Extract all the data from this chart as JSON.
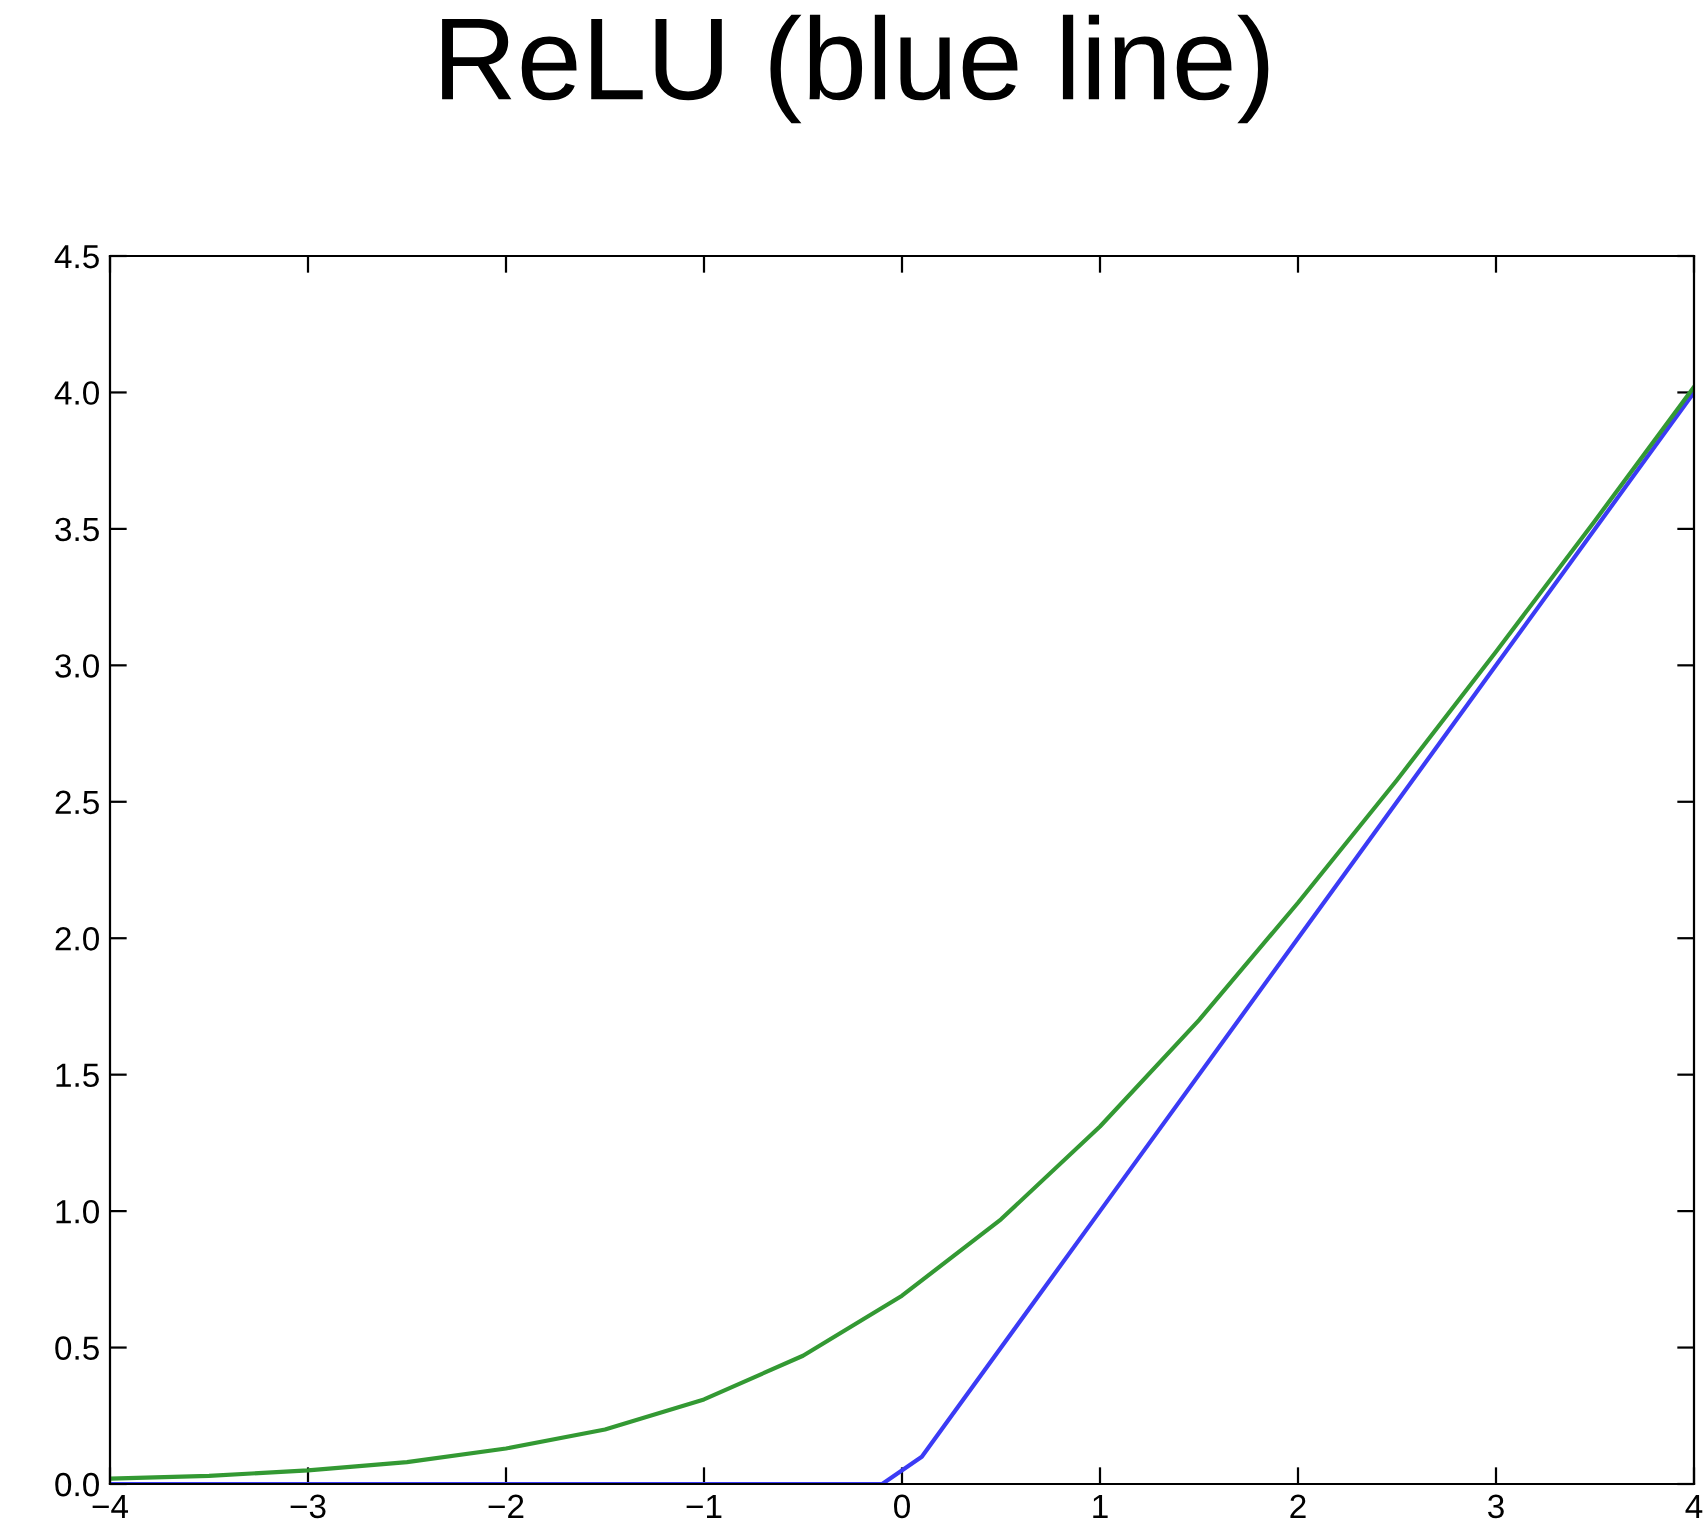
{
  "chart_data": {
    "type": "line",
    "title": "ReLU (blue line)",
    "series": [
      {
        "color": "#3b3bf5",
        "x": [
          -4,
          -3,
          -2,
          -1,
          -0.1,
          0.1,
          1,
          2,
          3,
          4
        ],
        "values": [
          0,
          0,
          0,
          0,
          0,
          0.1,
          1,
          2,
          3,
          4
        ]
      },
      {
        "color": "#339933",
        "x": [
          -4,
          -3.5,
          -3,
          -2.5,
          -2,
          -1.5,
          -1,
          -0.5,
          0,
          0.5,
          1,
          1.5,
          2,
          2.5,
          3,
          3.5,
          4
        ],
        "values": [
          0.02,
          0.03,
          0.05,
          0.08,
          0.13,
          0.2,
          0.31,
          0.47,
          0.69,
          0.97,
          1.31,
          1.7,
          2.13,
          2.58,
          3.05,
          3.53,
          4.02
        ]
      }
    ],
    "xlim": [
      -4,
      4
    ],
    "ylim": [
      0,
      4.5
    ],
    "xticks": [
      {
        "value": -4,
        "label": "−4"
      },
      {
        "value": -3,
        "label": "−3"
      },
      {
        "value": -2,
        "label": "−2"
      },
      {
        "value": -1,
        "label": "−1"
      },
      0,
      1,
      2,
      3,
      4
    ],
    "yticks": [
      {
        "value": 0,
        "label": "0.0"
      },
      0.5,
      {
        "value": 1,
        "label": "1.0"
      },
      1.5,
      {
        "value": 2,
        "label": "2.0"
      },
      2.5,
      {
        "value": 3,
        "label": "3.0"
      },
      3.5,
      {
        "value": 4,
        "label": "4.0"
      },
      4.5
    ],
    "grid": false,
    "legend": false
  }
}
